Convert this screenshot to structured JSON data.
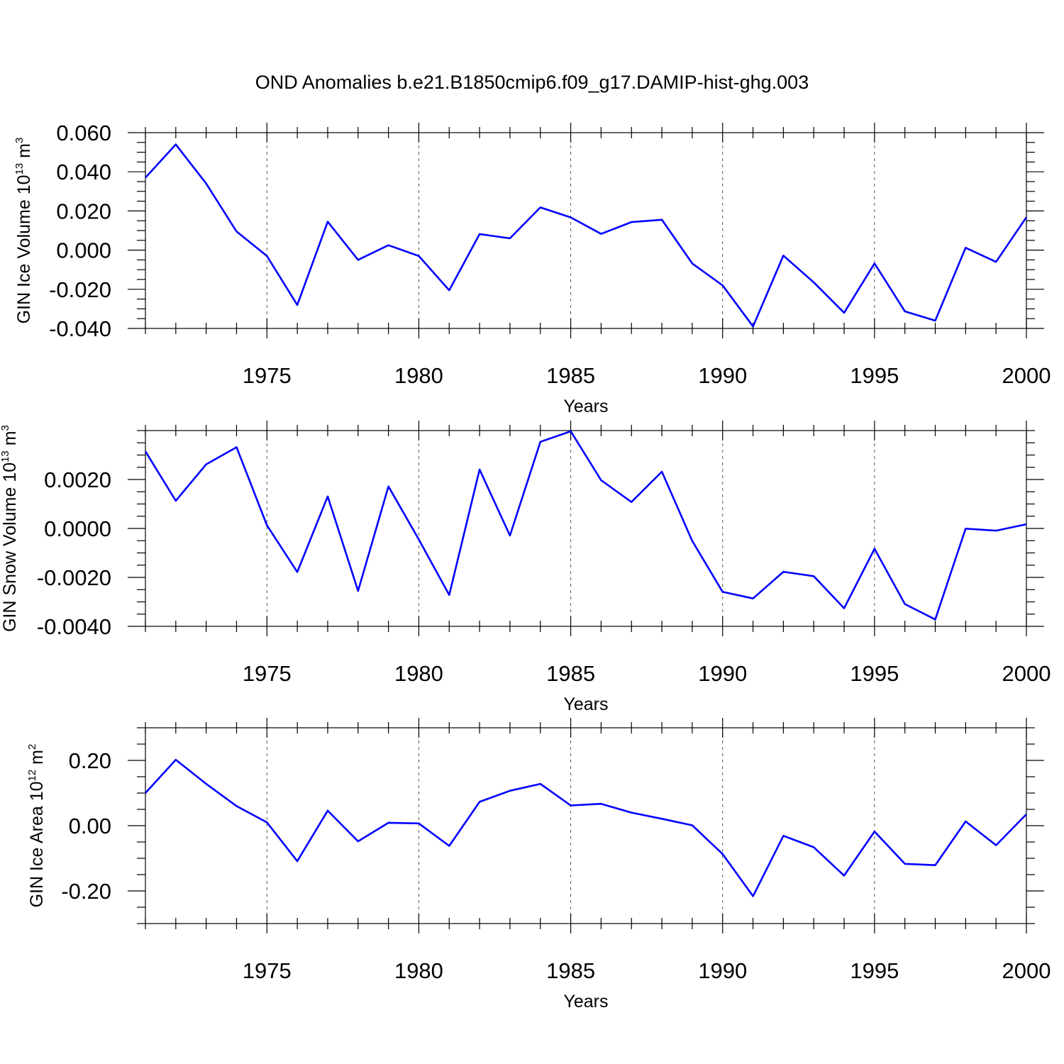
{
  "title": "OND Anomalies b.e21.B1850cmip6.f09_g17.DAMIP-hist-ghg.003",
  "colors": {
    "series": "#0000ff",
    "axes": "#000000",
    "grid": "#555555"
  },
  "chart_data": [
    {
      "type": "line",
      "xlabel": "Years",
      "ylabel": {
        "text": "GIN Ice Volume 10",
        "sup": "13",
        "unit": " m",
        "unit_sup": "3"
      },
      "xlim": [
        1971,
        2000
      ],
      "ylim": [
        -0.04,
        0.06
      ],
      "xticks": [
        1975,
        1980,
        1985,
        1990,
        1995,
        2000
      ],
      "yticks": [
        -0.04,
        -0.02,
        0.0,
        0.02,
        0.04,
        0.06
      ],
      "ytick_labels": [
        "-0.040",
        "-0.020",
        "0.000",
        "0.020",
        "0.040",
        "0.060"
      ],
      "grid": "vertical dashed at major x ticks",
      "x": [
        1971,
        1972,
        1973,
        1974,
        1975,
        1976,
        1977,
        1978,
        1979,
        1980,
        1981,
        1982,
        1983,
        1984,
        1985,
        1986,
        1987,
        1988,
        1989,
        1990,
        1991,
        1992,
        1993,
        1994,
        1995,
        1996,
        1997,
        1998,
        1999,
        2000
      ],
      "values": [
        0.037,
        0.054,
        0.034,
        0.0095,
        -0.003,
        -0.028,
        0.0145,
        -0.005,
        0.0025,
        -0.003,
        -0.0205,
        0.0082,
        0.006,
        0.0218,
        0.0167,
        0.0083,
        0.0143,
        0.0155,
        -0.0068,
        -0.018,
        -0.039,
        -0.0028,
        -0.0165,
        -0.032,
        -0.0068,
        -0.0313,
        -0.036,
        0.0012,
        -0.006,
        0.0168
      ]
    },
    {
      "type": "line",
      "xlabel": "Years",
      "ylabel": {
        "text": "GIN Snow Volume 10",
        "sup": "13",
        "unit": " m",
        "unit_sup": "3"
      },
      "xlim": [
        1971,
        2000
      ],
      "ylim": [
        -0.004,
        0.004
      ],
      "xticks": [
        1975,
        1980,
        1985,
        1990,
        1995,
        2000
      ],
      "yticks": [
        -0.004,
        -0.002,
        0.0,
        0.002
      ],
      "ytick_labels": [
        "-0.0040",
        "-0.0020",
        "0.0000",
        "0.0020"
      ],
      "grid": "vertical dashed at major x ticks",
      "x": [
        1971,
        1972,
        1973,
        1974,
        1975,
        1976,
        1977,
        1978,
        1979,
        1980,
        1981,
        1982,
        1983,
        1984,
        1985,
        1986,
        1987,
        1988,
        1989,
        1990,
        1991,
        1992,
        1993,
        1994,
        1995,
        1996,
        1997,
        1998,
        1999,
        2000
      ],
      "values": [
        0.00315,
        0.00113,
        0.00262,
        0.00332,
        0.00013,
        -0.00178,
        0.00131,
        -0.00255,
        0.00172,
        -0.00045,
        -0.00272,
        0.00241,
        -0.00029,
        0.00354,
        0.00397,
        0.00197,
        0.00108,
        0.00232,
        -0.00051,
        -0.00259,
        -0.00286,
        -0.00177,
        -0.00195,
        -0.00326,
        -0.00083,
        -0.00309,
        -0.00372,
        -1e-05,
        -9e-05,
        0.00017
      ]
    },
    {
      "type": "line",
      "xlabel": "Years",
      "ylabel": {
        "text": "GIN Ice Area 10",
        "sup": "12",
        "unit": " m",
        "unit_sup": "2"
      },
      "xlim": [
        1971,
        2000
      ],
      "ylim": [
        -0.3,
        0.3
      ],
      "xticks": [
        1975,
        1980,
        1985,
        1990,
        1995,
        2000
      ],
      "yticks": [
        -0.2,
        0.0,
        0.2
      ],
      "ytick_labels": [
        "-0.20",
        "0.00",
        "0.20"
      ],
      "grid": "vertical dashed at major x ticks",
      "x": [
        1971,
        1972,
        1973,
        1974,
        1975,
        1976,
        1977,
        1978,
        1979,
        1980,
        1981,
        1982,
        1983,
        1984,
        1985,
        1986,
        1987,
        1988,
        1989,
        1990,
        1991,
        1992,
        1993,
        1994,
        1995,
        1996,
        1997,
        1998,
        1999,
        2000
      ],
      "values": [
        0.1,
        0.202,
        0.128,
        0.06,
        0.01,
        -0.109,
        0.046,
        -0.048,
        0.009,
        0.007,
        -0.062,
        0.073,
        0.107,
        0.128,
        0.062,
        0.067,
        0.04,
        0.021,
        0.001,
        -0.087,
        -0.216,
        -0.031,
        -0.066,
        -0.153,
        -0.018,
        -0.117,
        -0.121,
        0.013,
        -0.06,
        0.035
      ]
    }
  ]
}
